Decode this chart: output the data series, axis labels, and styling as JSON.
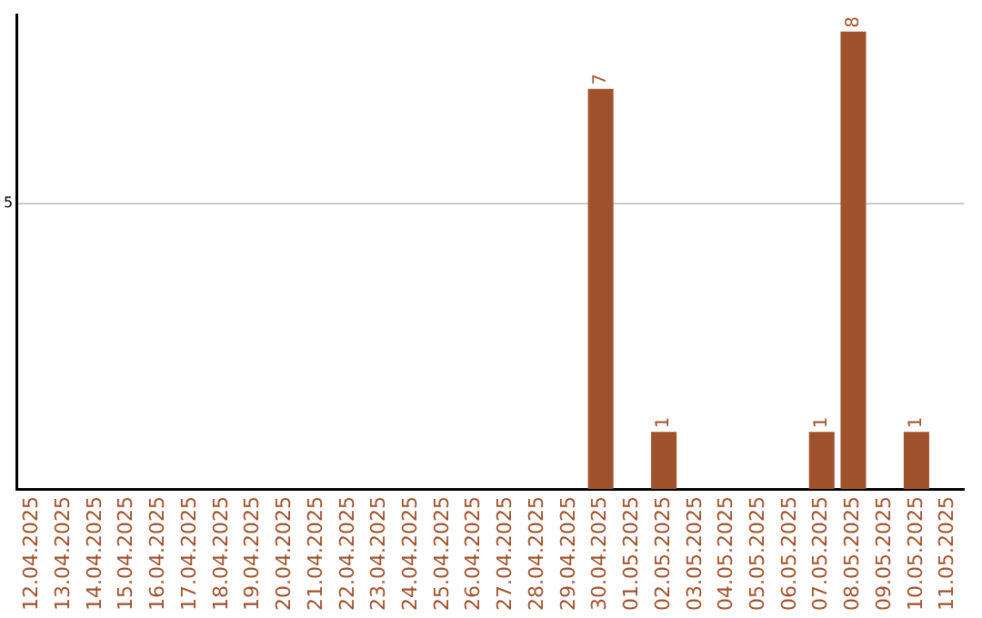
{
  "chart_data": {
    "type": "bar",
    "categories": [
      "12.04.2025",
      "13.04.2025",
      "14.04.2025",
      "15.04.2025",
      "16.04.2025",
      "17.04.2025",
      "18.04.2025",
      "19.04.2025",
      "20.04.2025",
      "21.04.2025",
      "22.04.2025",
      "23.04.2025",
      "24.04.2025",
      "25.04.2025",
      "26.04.2025",
      "27.04.2025",
      "28.04.2025",
      "29.04.2025",
      "30.04.2025",
      "01.05.2025",
      "02.05.2025",
      "03.05.2025",
      "04.05.2025",
      "05.05.2025",
      "06.05.2025",
      "07.05.2025",
      "08.05.2025",
      "09.05.2025",
      "10.05.2025",
      "11.05.2025"
    ],
    "values": [
      null,
      null,
      null,
      null,
      null,
      null,
      null,
      null,
      null,
      null,
      null,
      null,
      null,
      null,
      null,
      null,
      null,
      null,
      7,
      null,
      1,
      null,
      null,
      null,
      null,
      1,
      8,
      null,
      1,
      null
    ],
    "data_labels": true,
    "color": "#a0522d",
    "ylim": [
      0,
      8.3
    ],
    "yticks": [
      5
    ],
    "grid": "y",
    "legend": false
  }
}
